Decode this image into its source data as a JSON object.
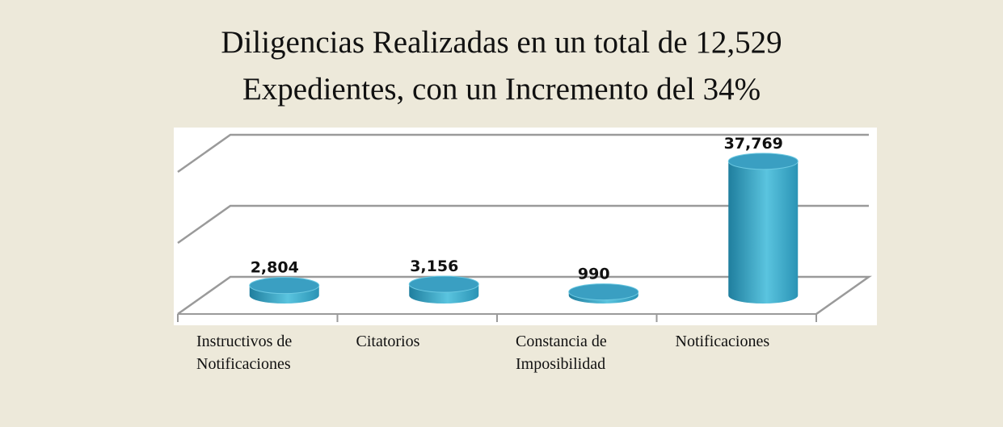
{
  "chart_data": {
    "type": "bar3d",
    "title": [
      "Diligencias Realizadas en un total de 12,529",
      "Expedientes, con un Incremento del 34%"
    ],
    "categories": [
      "Instructivos de Notificaciones",
      "Citatorios",
      "Constancia de Imposibilidad",
      "Notificaciones"
    ],
    "values": [
      2804,
      3156,
      990,
      37769
    ],
    "value_labels": [
      "2,804",
      "3,156",
      "990",
      "37,769"
    ],
    "color": "#3aaccd",
    "ylim": [
      0,
      40000
    ],
    "yticks": [
      0,
      20000,
      40000
    ],
    "grid": true
  }
}
